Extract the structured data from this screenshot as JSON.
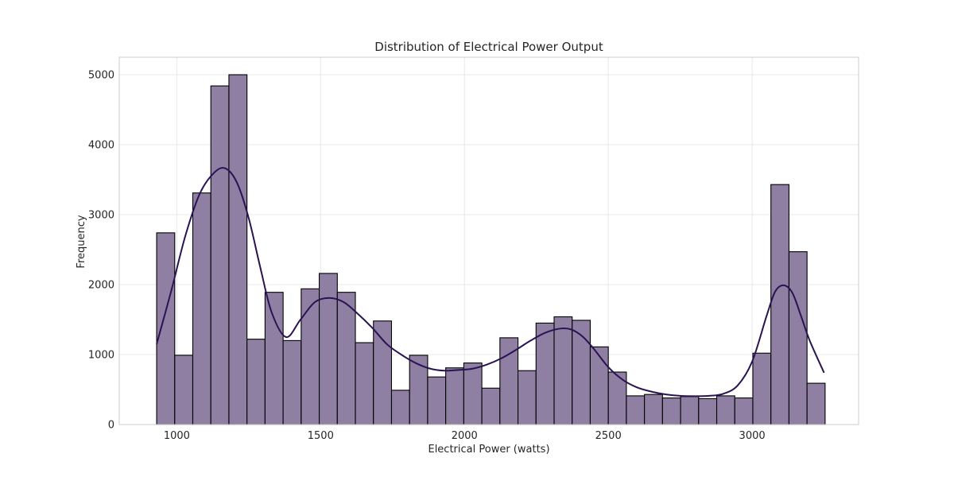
{
  "chart_data": {
    "type": "bar",
    "title": "Distribution of Electrical Power Output",
    "xlabel": "Electrical Power (watts)",
    "ylabel": "Frequency",
    "xlim": [
      800,
      3370
    ],
    "ylim": [
      0,
      5250
    ],
    "x_ticks": [
      1000,
      1500,
      2000,
      2500,
      3000
    ],
    "y_ticks": [
      0,
      1000,
      2000,
      3000,
      4000,
      5000
    ],
    "grid": true,
    "bin_start": 930,
    "bin_width": 62.8,
    "values": [
      2740,
      990,
      3310,
      4840,
      5000,
      1220,
      1890,
      1200,
      1940,
      2160,
      1890,
      1170,
      1480,
      490,
      990,
      680,
      810,
      880,
      520,
      1240,
      770,
      1450,
      1540,
      1490,
      1110,
      750,
      410,
      430,
      380,
      400,
      370,
      410,
      380,
      1020,
      3430,
      2470,
      590
    ],
    "kde": {
      "x": [
        930,
        980,
        1030,
        1080,
        1130,
        1170,
        1210,
        1250,
        1290,
        1330,
        1380,
        1430,
        1480,
        1530,
        1580,
        1630,
        1680,
        1730,
        1780,
        1830,
        1880,
        1930,
        1980,
        2030,
        2080,
        2130,
        2180,
        2230,
        2280,
        2330,
        2370,
        2410,
        2450,
        2500,
        2550,
        2600,
        2650,
        2700,
        2750,
        2800,
        2850,
        2900,
        2950,
        3000,
        3050,
        3080,
        3110,
        3140,
        3170,
        3200,
        3250
      ],
      "y": [
        1150,
        1900,
        2700,
        3300,
        3600,
        3660,
        3450,
        2950,
        2250,
        1600,
        1250,
        1500,
        1750,
        1810,
        1750,
        1580,
        1380,
        1150,
        1000,
        880,
        800,
        770,
        780,
        800,
        860,
        950,
        1070,
        1200,
        1310,
        1370,
        1360,
        1260,
        1080,
        820,
        640,
        530,
        470,
        430,
        410,
        405,
        410,
        440,
        560,
        900,
        1550,
        1900,
        1990,
        1880,
        1550,
        1200,
        740
      ]
    },
    "colors": {
      "bar_fill": "#8f7fa3",
      "bar_edge": "#000000",
      "kde_line": "#2a1352"
    }
  }
}
